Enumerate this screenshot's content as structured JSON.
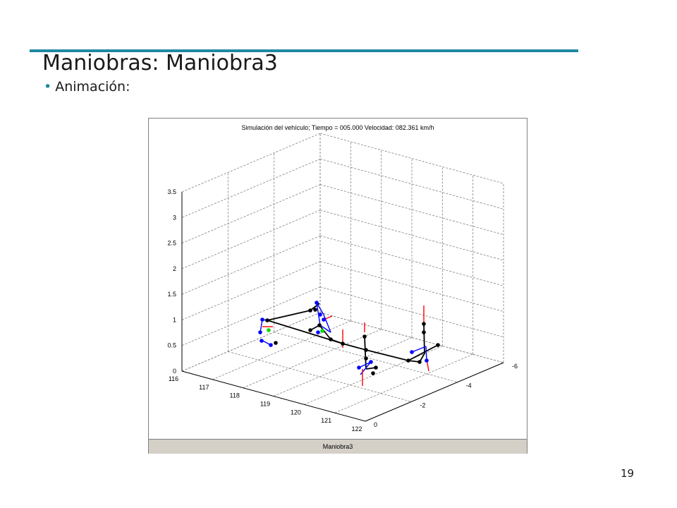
{
  "slide": {
    "title": "Maniobras: Maniobra3",
    "bullet": "Animación:",
    "page_number": "19",
    "accent_color": "#1f8aa0"
  },
  "figure": {
    "caption": "Maniobra3",
    "plot_title": "Simulación del vehículo; Tiempo = 005.000   Velocidad: 082.361 km/h",
    "z_ticks": [
      "0",
      "0.5",
      "1",
      "1.5",
      "2",
      "2.5",
      "3",
      "3.5"
    ],
    "x_ticks": [
      "116",
      "117",
      "118",
      "119",
      "120",
      "121",
      "122"
    ],
    "y_ticks": [
      "0",
      "-2",
      "-4",
      "-6"
    ]
  },
  "chart_data": {
    "type": "scatter",
    "title": "Simulación del vehículo; Tiempo = 005.000   Velocidad: 082.361 km/h",
    "xlabel": "",
    "ylabel": "",
    "zlabel": "",
    "projection": "3d",
    "grid": true,
    "xlim": [
      116,
      122
    ],
    "ylim": [
      -6,
      0
    ],
    "zlim": [
      0,
      3.5
    ],
    "series": [],
    "colors": {
      "chassis": "#000000",
      "suspension": "#0000ff",
      "forces": "#ff0000",
      "markers": "#00e000"
    }
  }
}
